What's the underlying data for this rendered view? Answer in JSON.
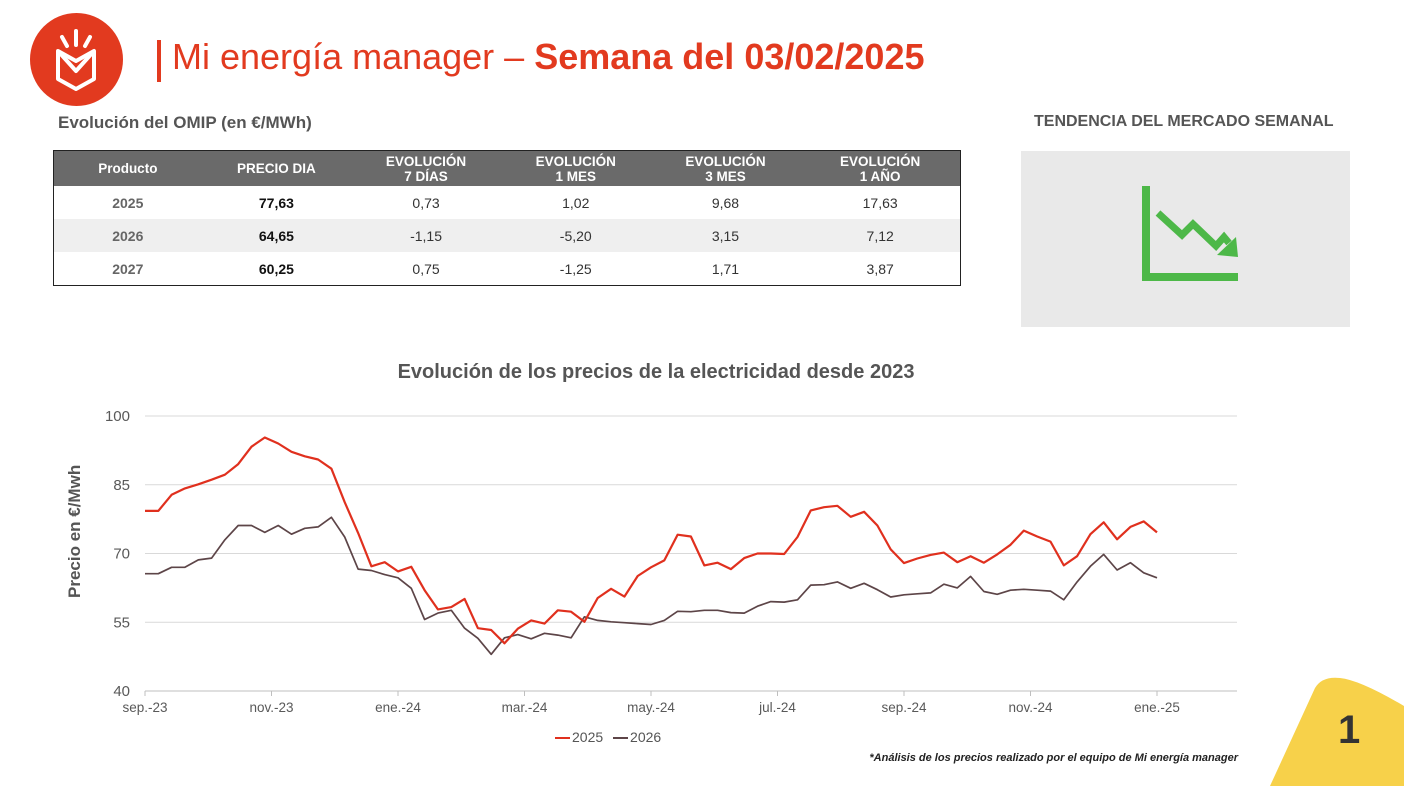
{
  "header": {
    "title_light": "Mi energía manager –",
    "title_bold": "Semana del 03/02/2025"
  },
  "omip": {
    "title": "Evolución del OMIP (en €/MWh)",
    "columns": [
      [
        "Producto"
      ],
      [
        "PRECIO DIA"
      ],
      [
        "EVOLUCIÓN",
        "7 DÍAS"
      ],
      [
        "EVOLUCIÓN",
        "1 MES"
      ],
      [
        "EVOLUCIÓN",
        "3 MES"
      ],
      [
        "EVOLUCIÓN",
        "1 AÑO"
      ]
    ],
    "rows": [
      [
        "2025",
        "77,63",
        "0,73",
        "1,02",
        "9,68",
        "17,63"
      ],
      [
        "2026",
        "64,65",
        "-1,15",
        "-5,20",
        "3,15",
        "7,12"
      ],
      [
        "2027",
        "60,25",
        "0,75",
        "-1,25",
        "1,71",
        "3,87"
      ]
    ]
  },
  "trend": {
    "title": "TENDENCIA DEL MERCADO SEMANAL",
    "icon": "downtrend-chart-icon",
    "color": "#4db848"
  },
  "colors": {
    "brand": "#e23a1f",
    "series_2025": "#e0301e",
    "series_2026": "#5d4548",
    "page_corner": "#f7d14a"
  },
  "chart_data": {
    "type": "line",
    "title": "Evolución de los precios de la electricidad desde 2023",
    "ylabel": "Precio en €/Mwh",
    "xlabel": "",
    "ylim": [
      40,
      100
    ],
    "yticks": [
      40,
      55,
      70,
      85,
      100
    ],
    "grid": true,
    "legend_position": "bottom",
    "x_ticks": [
      "sep.-23",
      "nov.-23",
      "ene.-24",
      "mar.-24",
      "may.-24",
      "jul.-24",
      "sep.-24",
      "nov.-24",
      "ene.-25"
    ],
    "x_points_per_tick": 9.5,
    "series": [
      {
        "name": "2025",
        "values": [
          79.3,
          79.3,
          82.8,
          84.2,
          85.1,
          86.1,
          87.2,
          89.5,
          93.3,
          95.3,
          94.0,
          92.2,
          91.2,
          90.5,
          88.5,
          81.2,
          74.5,
          67.2,
          68.1,
          66.1,
          67.1,
          62.0,
          57.8,
          58.3,
          60.1,
          53.7,
          53.3,
          50.4,
          53.6,
          55.4,
          54.7,
          57.6,
          57.3,
          55.1,
          60.3,
          62.3,
          60.6,
          65.1,
          67.0,
          68.5,
          74.1,
          73.7,
          67.4,
          68.0,
          66.6,
          69.0,
          70.0,
          70.0,
          69.9,
          73.6,
          79.4,
          80.1,
          80.4,
          78.0,
          79.1,
          76.1,
          70.9,
          67.9,
          68.9,
          69.7,
          70.2,
          68.1,
          69.4,
          68.0,
          69.8,
          71.9,
          75.0,
          73.7,
          72.6,
          67.4,
          69.4,
          74.2,
          76.8,
          73.1,
          75.8,
          77.0,
          74.6
        ]
      },
      {
        "name": "2026",
        "values": [
          65.6,
          65.6,
          67.0,
          67.0,
          68.6,
          69.0,
          73.0,
          76.1,
          76.1,
          74.6,
          76.1,
          74.2,
          75.5,
          75.8,
          77.9,
          73.6,
          66.6,
          66.3,
          65.4,
          64.7,
          62.4,
          55.6,
          57.0,
          57.6,
          53.7,
          51.5,
          48.0,
          51.6,
          52.3,
          51.4,
          52.6,
          52.2,
          51.6,
          56.2,
          55.4,
          55.1,
          54.9,
          54.7,
          54.5,
          55.4,
          57.4,
          57.3,
          57.6,
          57.6,
          57.1,
          57.0,
          58.5,
          59.5,
          59.4,
          59.9,
          63.1,
          63.2,
          63.8,
          62.4,
          63.5,
          62.1,
          60.5,
          61.0,
          61.2,
          61.4,
          63.3,
          62.5,
          65.0,
          61.7,
          61.1,
          62.0,
          62.2,
          62.0,
          61.8,
          59.9,
          63.8,
          67.2,
          69.8,
          66.4,
          68.0,
          65.8,
          64.7
        ]
      }
    ]
  },
  "footnote": "*Análisis de los precios realizado por el equipo de Mi energía manager",
  "page_number": "1"
}
